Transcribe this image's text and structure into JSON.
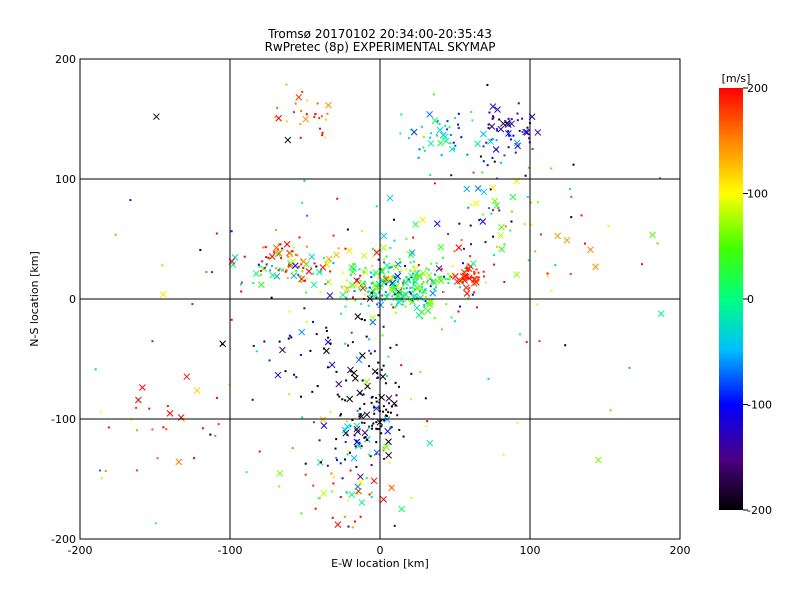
{
  "chart_data": {
    "type": "scatter",
    "title": "Tromsø 20170102 20:34:00-20:35:43",
    "subtitle": "RwPretec (8p) EXPERIMENTAL SKYMAP",
    "xlabel": "E-W location [km]",
    "ylabel": "N-S location [km]",
    "xlim": [
      -200,
      200
    ],
    "ylim": [
      -200,
      200
    ],
    "xticks": [
      "-200",
      "-100",
      "0",
      "100",
      "200"
    ],
    "yticks": [
      "-200",
      "-100",
      "0",
      "100",
      "200"
    ],
    "grid": true,
    "colorbar": {
      "label": "[m/s]",
      "range": [
        -200,
        200
      ],
      "ticks": [
        "-200",
        "-100",
        "0",
        "100",
        "200"
      ],
      "colormap": "rainbow-black-red"
    },
    "markers": [
      "x",
      "dot"
    ],
    "clusters": [
      {
        "cx": 15,
        "cy": 10,
        "sx": 18,
        "sy": 10,
        "n": 260,
        "v": 10,
        "vs": 60
      },
      {
        "cx": -15,
        "cy": 25,
        "sx": 45,
        "sy": 12,
        "n": 120,
        "v": 60,
        "vs": 110
      },
      {
        "cx": 60,
        "cy": 18,
        "sx": 6,
        "sy": 4,
        "n": 40,
        "v": 190,
        "vs": 10
      },
      {
        "cx": -60,
        "cy": 30,
        "sx": 10,
        "sy": 10,
        "n": 60,
        "v": 120,
        "vs": 100
      },
      {
        "cx": 80,
        "cy": 140,
        "sx": 12,
        "sy": 10,
        "n": 60,
        "v": -120,
        "vs": 40
      },
      {
        "cx": 40,
        "cy": 135,
        "sx": 15,
        "sy": 10,
        "n": 40,
        "v": -30,
        "vs": 40
      },
      {
        "cx": -45,
        "cy": 150,
        "sx": 12,
        "sy": 8,
        "n": 25,
        "v": 160,
        "vs": 40
      },
      {
        "cx": 80,
        "cy": 80,
        "sx": 15,
        "sy": 25,
        "n": 40,
        "v": -60,
        "vs": 120
      },
      {
        "cx": -8,
        "cy": -90,
        "sx": 12,
        "sy": 15,
        "n": 70,
        "v": -200,
        "vs": 20
      },
      {
        "cx": -15,
        "cy": -115,
        "sx": 12,
        "sy": 12,
        "n": 50,
        "v": -100,
        "vs": 110
      },
      {
        "cx": -20,
        "cy": -160,
        "sx": 20,
        "sy": 20,
        "n": 50,
        "v": 80,
        "vs": 120
      },
      {
        "cx": -30,
        "cy": -40,
        "sx": 25,
        "sy": 20,
        "n": 60,
        "v": -180,
        "vs": 60
      },
      {
        "cx": 110,
        "cy": 40,
        "sx": 35,
        "sy": 35,
        "n": 40,
        "v": 150,
        "vs": 80
      },
      {
        "cx": -150,
        "cy": -110,
        "sx": 30,
        "sy": 20,
        "n": 25,
        "v": 180,
        "vs": 60
      },
      {
        "cx": 0,
        "cy": 0,
        "sx": 110,
        "sy": 110,
        "n": 120,
        "v": 0,
        "vs": 160
      }
    ]
  }
}
